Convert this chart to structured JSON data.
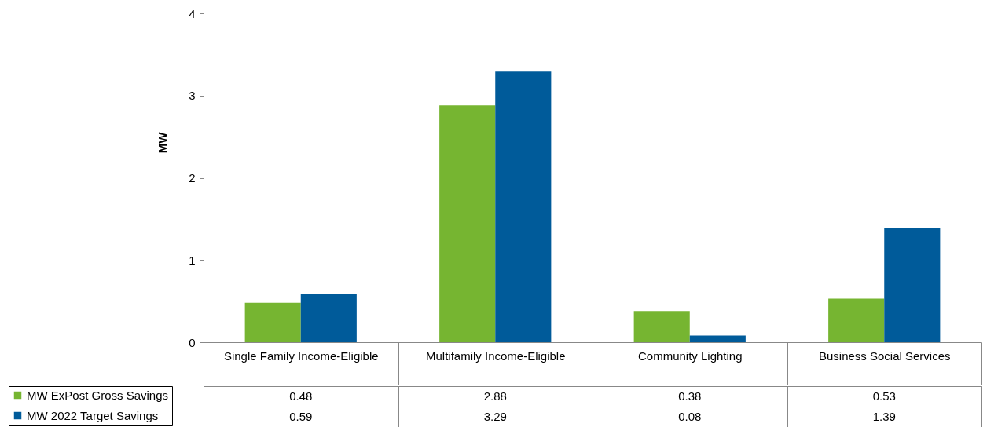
{
  "chart_data": {
    "type": "bar",
    "ylabel": "MW",
    "categories": [
      "Single Family Income-Eligible",
      "Multifamily Income-Eligible",
      "Community Lighting",
      "Business Social Services"
    ],
    "series": [
      {
        "name": "MW ExPost Gross Savings",
        "color": "#76b531",
        "values": [
          0.48,
          2.88,
          0.38,
          0.53
        ]
      },
      {
        "name": "MW 2022 Target Savings",
        "color": "#005b9a",
        "values": [
          0.59,
          3.29,
          0.08,
          1.39
        ]
      }
    ],
    "ylim": [
      0,
      4
    ],
    "yticks": [
      0,
      1,
      2,
      3,
      4
    ],
    "data_labels": true,
    "legend": "bottom left",
    "grid": false
  }
}
